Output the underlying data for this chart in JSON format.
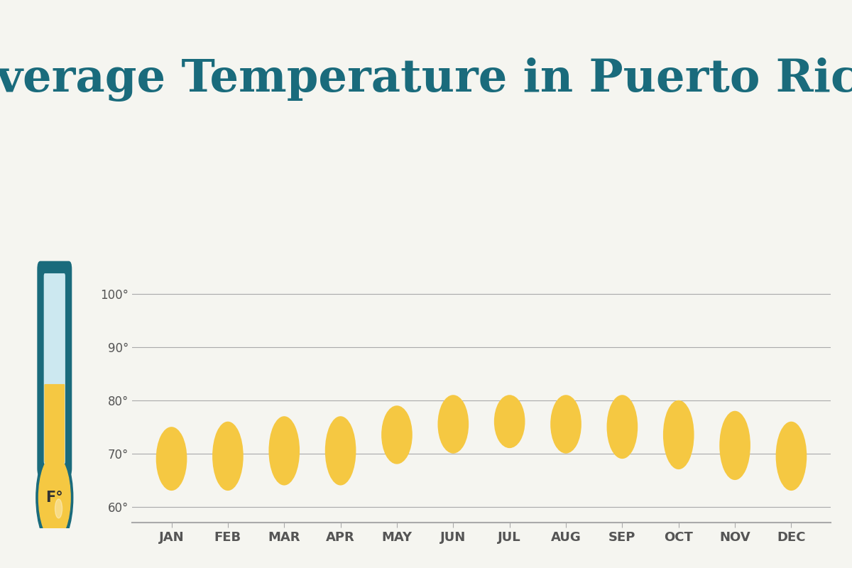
{
  "title": "Average Temperature in Puerto Rico",
  "title_color": "#1a6b7c",
  "background_color": "#f5f5f0",
  "chart_background": "#f5f5f0",
  "months": [
    "JAN",
    "FEB",
    "MAR",
    "APR",
    "MAY",
    "JUN",
    "JUL",
    "AUG",
    "SEP",
    "OCT",
    "NOV",
    "DEC"
  ],
  "temp_low": [
    63,
    63,
    64,
    64,
    68,
    70,
    71,
    70,
    69,
    67,
    65,
    63
  ],
  "temp_high": [
    75,
    76,
    77,
    77,
    79,
    81,
    81,
    81,
    81,
    80,
    78,
    76
  ],
  "oval_color": "#F5C842",
  "yticks": [
    60,
    70,
    80,
    90,
    100
  ],
  "ylim": [
    57,
    104
  ],
  "grid_color": "#aaaaaa",
  "tick_color": "#555555",
  "axis_line_color": "#aaaaaa",
  "teal_color": "#1a6b7c",
  "orange_color": "#F5C842",
  "light_blue_color": "#cce8f0"
}
